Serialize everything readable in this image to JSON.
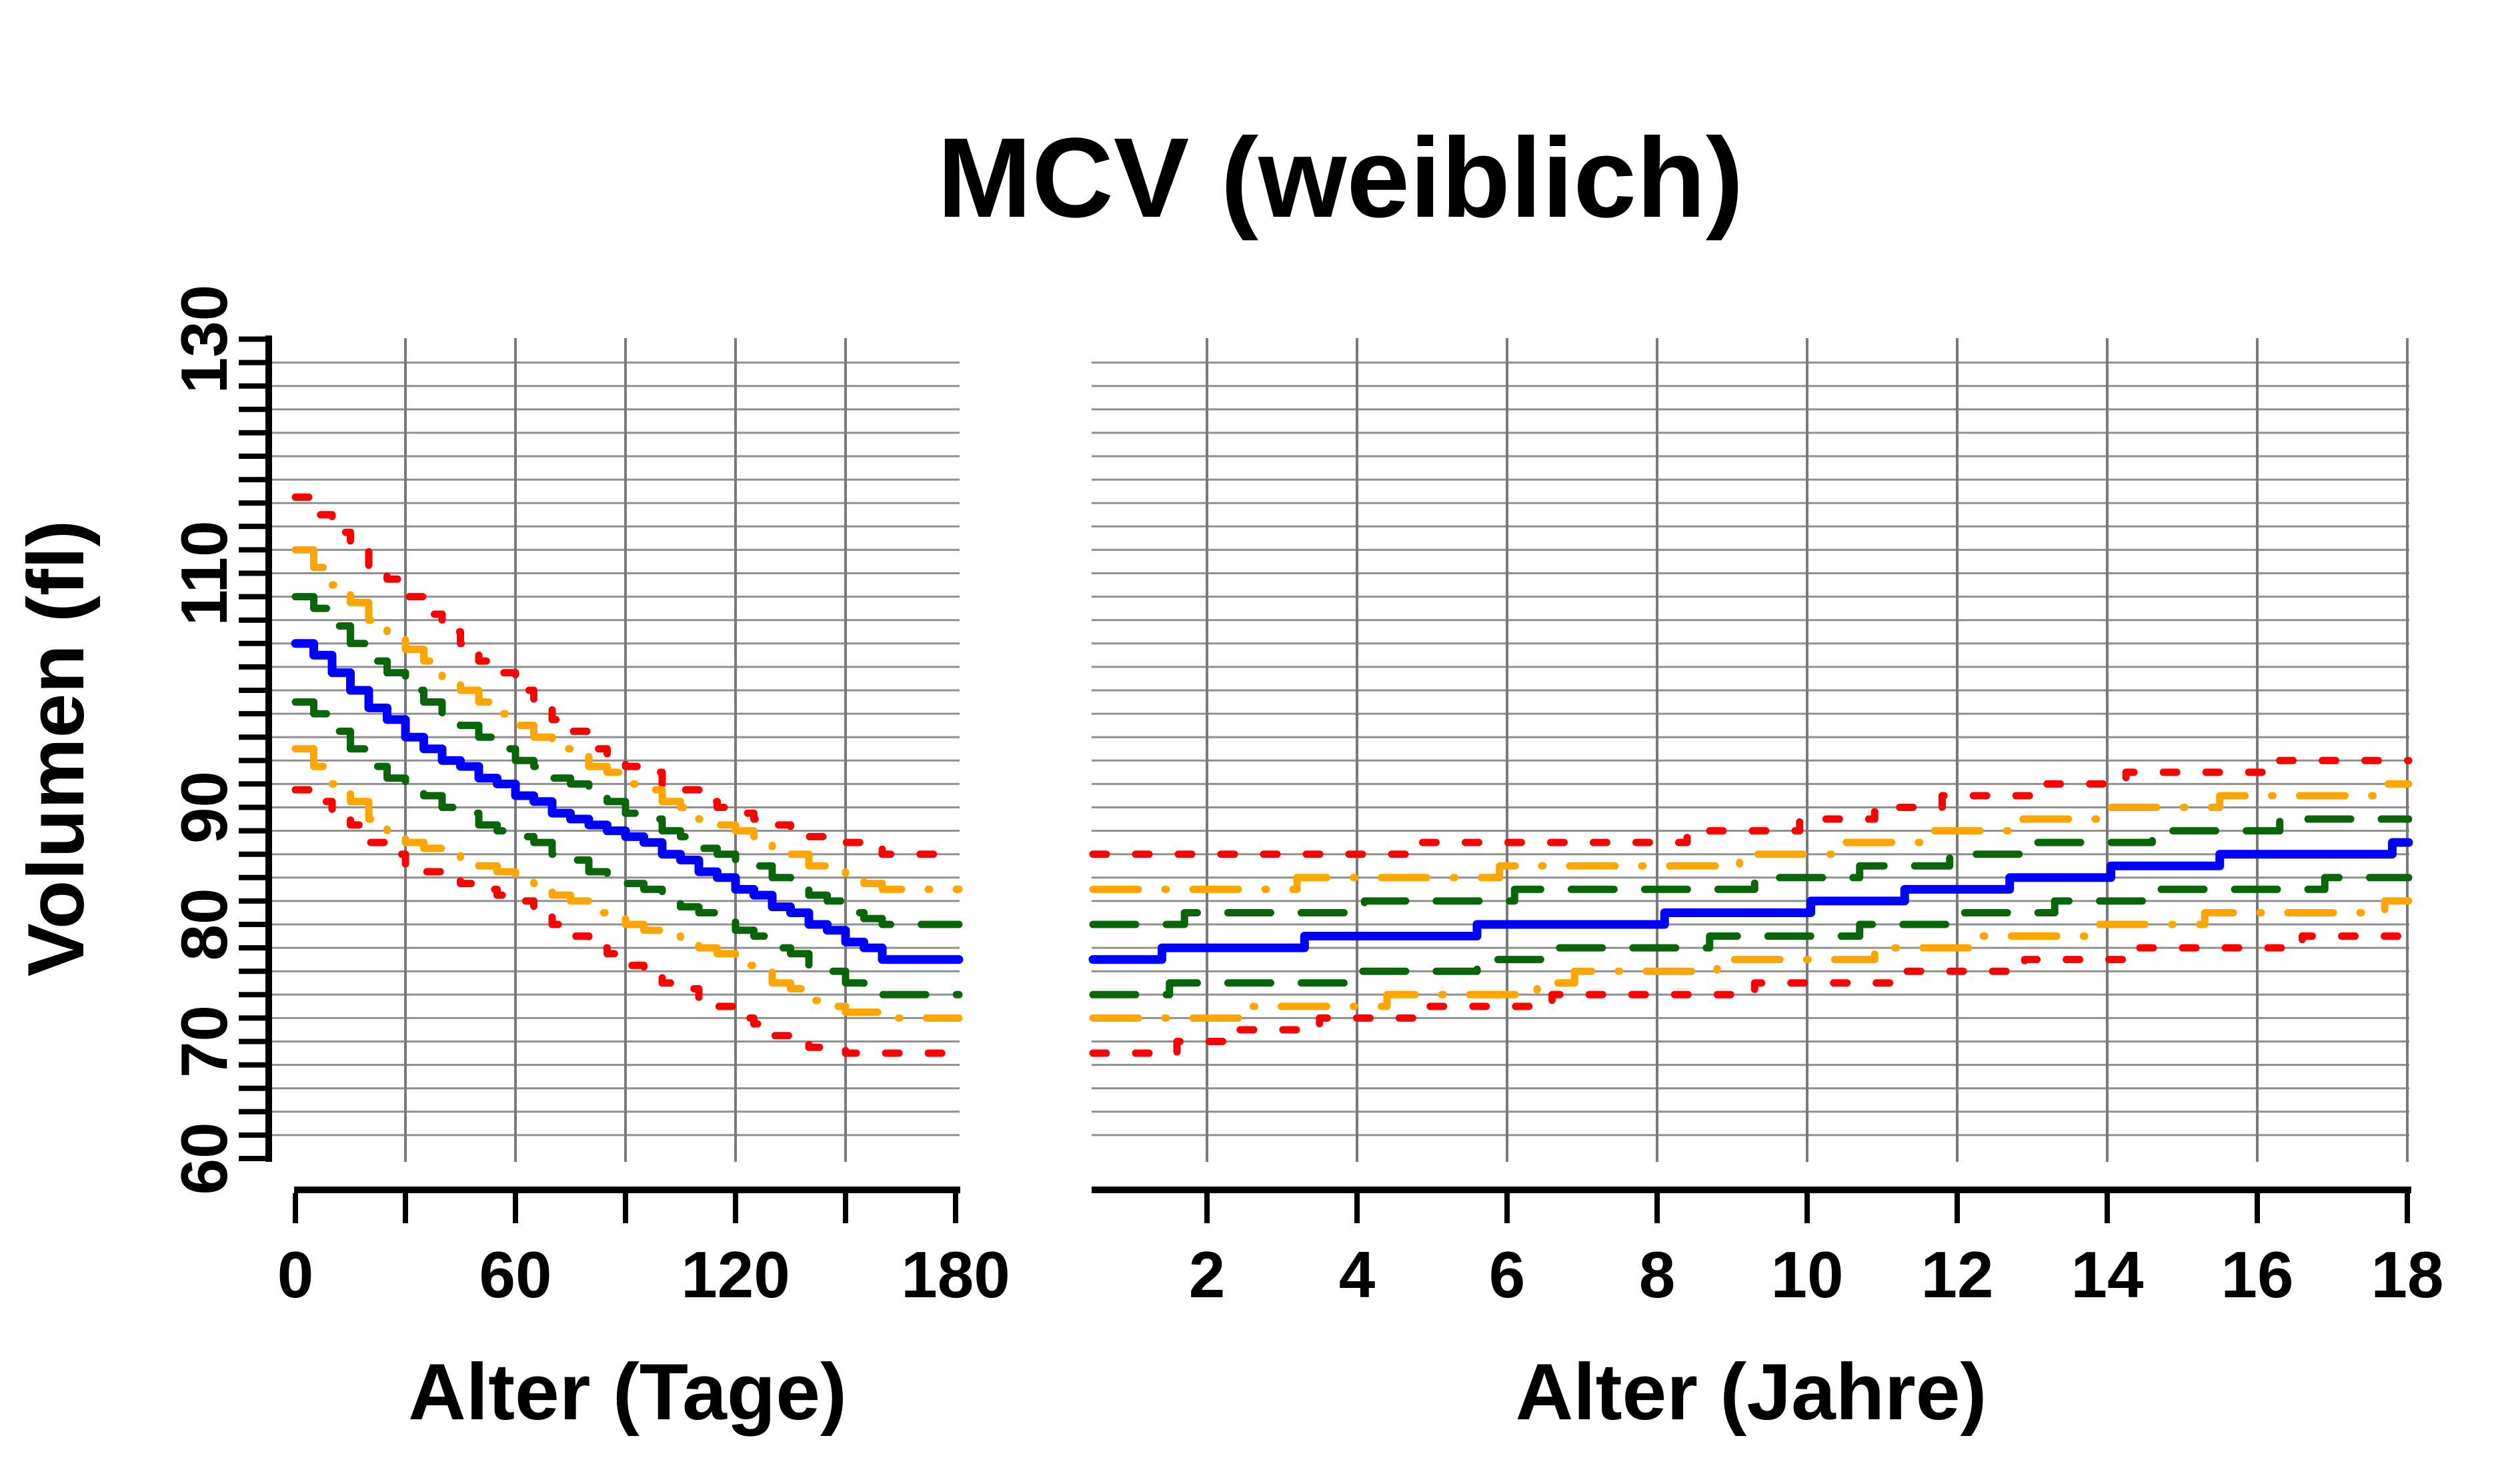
{
  "chart_data": {
    "type": "line",
    "title": "MCV (weiblich)",
    "subtitle": "",
    "legend": "none",
    "grid": "on",
    "y_axis": {
      "label": "Volumen (fl)",
      "min": 60,
      "max": 130,
      "tick_step": 2,
      "labeled_ticks": [
        60,
        70,
        80,
        90,
        110,
        130
      ],
      "gridline_min": 62,
      "gridline_max": 128,
      "gridline_step": 2
    },
    "colors": {
      "red": "#ff0000",
      "orange": "#ffa500",
      "green": "#0a650a",
      "blue": "#0000ff",
      "grid_h": "#8f8f8f",
      "grid_v": "#7a7a7a",
      "axis": "#000000",
      "background": "#ffffff"
    },
    "panels": [
      {
        "x_axis": {
          "label": "Alter (Tage)",
          "min": 0,
          "max": 181,
          "ticks": [
            0,
            30,
            60,
            90,
            120,
            150,
            180
          ],
          "labeled_ticks": [
            0,
            60,
            120,
            180
          ],
          "gridlines": [
            30,
            60,
            90,
            120,
            150
          ]
        },
        "days": [
          0,
          10,
          20,
          30,
          40,
          50,
          60,
          70,
          80,
          90,
          100,
          110,
          120,
          130,
          140,
          150,
          160,
          170,
          180
        ],
        "series": [
          {
            "name": "upper-red-dotted",
            "color": "red",
            "style": "dotted",
            "values": [
              116.5,
              113.5,
              110.5,
              108,
              105,
              102.5,
              100,
              97.5,
              95,
              93.5,
              92,
              90.5,
              89.5,
              88.5,
              87.5,
              87,
              86,
              86,
              86
            ]
          },
          {
            "name": "upper-orange-dashdot",
            "color": "orange",
            "style": "dashdot",
            "values": [
              112,
              109,
              106,
              103.5,
              101,
              99,
              97,
              95,
              93.5,
              92,
              90.5,
              89,
              88,
              86.5,
              85,
              84,
              83,
              83,
              83
            ]
          },
          {
            "name": "upper-green-dashed",
            "color": "green",
            "style": "dashed",
            "values": [
              108,
              105.5,
              102.5,
              100,
              98,
              96,
              94,
              92.5,
              91,
              89.5,
              88,
              86.5,
              85.5,
              84,
              82.5,
              81,
              80,
              80,
              80
            ]
          },
          {
            "name": "central-blue-solid",
            "color": "blue",
            "style": "solid",
            "values": [
              104,
              101.5,
              98.5,
              96,
              94,
              92.5,
              91,
              89.5,
              88.5,
              87.5,
              86,
              84.5,
              83,
              81.5,
              80,
              78.5,
              77,
              77,
              77
            ]
          },
          {
            "name": "lower-green-dashed",
            "color": "green",
            "style": "dashed",
            "values": [
              99,
              96.5,
              93.5,
              91.5,
              90,
              88.5,
              87.5,
              86,
              84.5,
              83.5,
              82,
              81,
              79.5,
              78,
              76.5,
              75,
              74,
              74,
              74
            ]
          },
          {
            "name": "lower-orange-dashdot",
            "color": "orange",
            "style": "dashdot",
            "values": [
              95,
              92,
              89,
              87,
              86,
              85,
              84,
              82.5,
              81,
              80,
              79,
              78,
              76.5,
              75,
              73.5,
              72.5,
              72,
              72,
              72
            ]
          },
          {
            "name": "lower-red-dotted",
            "color": "red",
            "style": "dotted",
            "values": [
              91.5,
              89.5,
              87,
              85,
              84,
              83,
              82,
              80,
              78,
              76.5,
              75,
              73.5,
              72,
              70.5,
              69.5,
              69,
              69,
              69,
              69
            ]
          }
        ]
      },
      {
        "x_axis": {
          "label": "Alter (Jahre)",
          "min": 0.47,
          "max": 18.05,
          "ticks": [
            2,
            4,
            6,
            8,
            10,
            12,
            14,
            16,
            18
          ],
          "labeled_ticks": [
            2,
            4,
            6,
            8,
            10,
            12,
            14,
            16,
            18
          ],
          "gridlines": [
            2,
            4,
            6,
            8,
            10,
            12,
            14,
            16,
            18
          ]
        },
        "series": [
          {
            "name": "upper-red-dotted",
            "color": "red",
            "style": "dotted",
            "breakpoints": [
              [
                0.5,
                86
              ],
              [
                4.8,
                87
              ],
              [
                8.4,
                88
              ],
              [
                9.9,
                89
              ],
              [
                10.9,
                90
              ],
              [
                11.8,
                91
              ],
              [
                13.0,
                92
              ],
              [
                14.25,
                93
              ],
              [
                16.1,
                94
              ]
            ]
          },
          {
            "name": "upper-orange-dashdot",
            "color": "orange",
            "style": "dashdot",
            "breakpoints": [
              [
                0.5,
                83
              ],
              [
                3.2,
                84
              ],
              [
                5.9,
                85
              ],
              [
                9.1,
                86
              ],
              [
                10.4,
                87
              ],
              [
                11.7,
                88
              ],
              [
                12.7,
                89
              ],
              [
                14.0,
                90
              ],
              [
                15.5,
                91
              ],
              [
                17.6,
                92
              ]
            ]
          },
          {
            "name": "upper-green-dashed",
            "color": "green",
            "style": "dashed",
            "breakpoints": [
              [
                0.5,
                80
              ],
              [
                1.7,
                81
              ],
              [
                4.1,
                82
              ],
              [
                6.1,
                83
              ],
              [
                9.3,
                84
              ],
              [
                10.7,
                85
              ],
              [
                11.9,
                86
              ],
              [
                13.0,
                87
              ],
              [
                14.6,
                88
              ],
              [
                16.3,
                89
              ]
            ]
          },
          {
            "name": "central-blue-solid",
            "color": "blue",
            "style": "solid",
            "breakpoints": [
              [
                0.5,
                77
              ],
              [
                1.4,
                78
              ],
              [
                3.3,
                79
              ],
              [
                5.6,
                80
              ],
              [
                8.1,
                81
              ],
              [
                10.05,
                82
              ],
              [
                11.3,
                83
              ],
              [
                12.7,
                84
              ],
              [
                14.05,
                85
              ],
              [
                15.5,
                86
              ],
              [
                17.8,
                87
              ]
            ]
          },
          {
            "name": "lower-green-dashed",
            "color": "green",
            "style": "dashed",
            "breakpoints": [
              [
                0.5,
                74
              ],
              [
                1.5,
                75
              ],
              [
                4.0,
                76
              ],
              [
                5.6,
                77
              ],
              [
                6.6,
                78
              ],
              [
                8.7,
                79
              ],
              [
                10.7,
                80
              ],
              [
                12.1,
                81
              ],
              [
                13.3,
                82
              ],
              [
                14.6,
                83
              ],
              [
                16.9,
                84
              ]
            ]
          },
          {
            "name": "lower-orange-dashdot",
            "color": "orange",
            "style": "dashdot",
            "breakpoints": [
              [
                0.5,
                72
              ],
              [
                2.6,
                73
              ],
              [
                4.4,
                74
              ],
              [
                6.4,
                75
              ],
              [
                6.9,
                76
              ],
              [
                8.8,
                77
              ],
              [
                10.9,
                78
              ],
              [
                12.3,
                79
              ],
              [
                13.7,
                80
              ],
              [
                15.3,
                81
              ],
              [
                17.7,
                82
              ]
            ]
          },
          {
            "name": "lower-red-dotted",
            "color": "red",
            "style": "dotted",
            "breakpoints": [
              [
                0.5,
                69
              ],
              [
                1.6,
                70
              ],
              [
                2.4,
                71
              ],
              [
                3.5,
                72
              ],
              [
                4.9,
                73
              ],
              [
                6.6,
                74
              ],
              [
                9.3,
                75
              ],
              [
                11.3,
                76
              ],
              [
                12.9,
                77
              ],
              [
                14.3,
                78
              ],
              [
                16.6,
                79
              ]
            ]
          }
        ]
      }
    ]
  }
}
